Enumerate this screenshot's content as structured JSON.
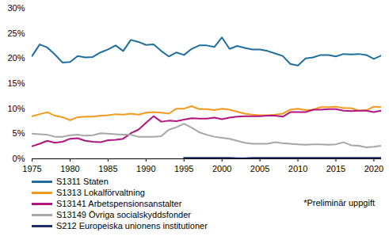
{
  "chart_data": {
    "type": "line",
    "x": [
      1975,
      1976,
      1977,
      1978,
      1979,
      1980,
      1981,
      1982,
      1983,
      1984,
      1985,
      1986,
      1987,
      1988,
      1989,
      1990,
      1991,
      1992,
      1993,
      1994,
      1995,
      1996,
      1997,
      1998,
      1999,
      2000,
      2001,
      2002,
      2003,
      2004,
      2005,
      2006,
      2007,
      2008,
      2009,
      2010,
      2011,
      2012,
      2013,
      2014,
      2015,
      2016,
      2017,
      2018,
      2019,
      2020,
      2021
    ],
    "series": [
      {
        "name": "S1311 Staten",
        "color": "#1f6e9e",
        "values": [
          20.5,
          22.8,
          22.2,
          20.8,
          19.2,
          19.3,
          20.5,
          20.2,
          20.3,
          21.2,
          21.8,
          22.6,
          21.5,
          23.7,
          23.3,
          22.7,
          22.8,
          21.5,
          20.4,
          21.2,
          20.7,
          21.9,
          22.6,
          22.6,
          22.3,
          24.2,
          21.9,
          22.5,
          22.1,
          21.8,
          21.8,
          21.5,
          21.0,
          20.5,
          18.9,
          18.6,
          20.0,
          20.2,
          20.7,
          20.7,
          20.4,
          20.9,
          20.8,
          20.9,
          20.7,
          19.9,
          20.6
        ]
      },
      {
        "name": "S1313 Lokalförvaltning",
        "color": "#f39a1e",
        "values": [
          8.5,
          8.9,
          9.3,
          8.6,
          8.3,
          7.7,
          8.3,
          8.4,
          8.4,
          8.6,
          8.7,
          8.9,
          8.8,
          9.0,
          8.8,
          9.2,
          9.3,
          9.2,
          9.0,
          10.0,
          10.0,
          10.5,
          9.9,
          9.9,
          9.7,
          10.0,
          9.8,
          9.4,
          9.0,
          8.8,
          8.7,
          8.7,
          8.8,
          9.0,
          9.8,
          10.0,
          9.7,
          9.8,
          10.3,
          10.3,
          10.4,
          10.1,
          10.1,
          9.6,
          9.7,
          10.4,
          10.3
        ]
      },
      {
        "name": "S13141 Arbetspensionsanstalter",
        "color": "#b0157f",
        "values": [
          2.5,
          3.0,
          3.6,
          3.2,
          3.4,
          4.0,
          4.1,
          3.6,
          3.4,
          3.3,
          3.7,
          3.8,
          4.0,
          5.1,
          5.8,
          7.2,
          8.5,
          7.4,
          7.6,
          7.5,
          7.8,
          8.1,
          8.0,
          8.0,
          8.2,
          7.9,
          8.2,
          8.4,
          8.5,
          8.5,
          8.5,
          8.6,
          8.6,
          8.4,
          9.3,
          9.3,
          9.3,
          9.8,
          9.8,
          9.9,
          9.9,
          9.6,
          9.5,
          9.6,
          9.6,
          9.3,
          9.6
        ]
      },
      {
        "name": "S13149 Övriga socialskyddsfonder",
        "color": "#a6a6a6",
        "values": [
          5.0,
          4.9,
          4.8,
          4.4,
          4.4,
          4.7,
          4.8,
          4.6,
          4.7,
          5.1,
          5.0,
          4.9,
          4.8,
          4.8,
          4.4,
          4.4,
          4.4,
          4.5,
          5.8,
          6.3,
          7.0,
          6.2,
          5.3,
          4.8,
          4.4,
          4.2,
          4.0,
          3.6,
          3.2,
          3.0,
          3.0,
          3.0,
          3.3,
          3.1,
          3.0,
          2.9,
          2.8,
          2.9,
          2.9,
          2.8,
          2.9,
          3.3,
          2.7,
          2.6,
          2.3,
          2.4,
          2.6
        ]
      },
      {
        "name": "S212 Europeiska unionens institutioner",
        "color": "#1f2d6b",
        "values": [
          null,
          null,
          null,
          null,
          null,
          null,
          null,
          null,
          null,
          null,
          null,
          null,
          null,
          null,
          null,
          null,
          null,
          null,
          null,
          null,
          0.2,
          0.2,
          0.2,
          0.2,
          0.2,
          0.2,
          0.2,
          0.1,
          0.1,
          0.2,
          0.2,
          0.2,
          0.2,
          0.2,
          0.2,
          0.2,
          0.2,
          0.2,
          0.2,
          0.2,
          0.2,
          0.2,
          0.2,
          0.2,
          0.2,
          0.2,
          0.2
        ]
      }
    ],
    "xlim": [
      1975,
      2021
    ],
    "xticks": [
      1975,
      1980,
      1985,
      1990,
      1995,
      2000,
      2005,
      2010,
      2015,
      2020
    ],
    "ylim": [
      0,
      30
    ],
    "yticks": [
      {
        "value": 0,
        "label": "0%"
      },
      {
        "value": 5,
        "label": "5%"
      },
      {
        "value": 10,
        "label": "10%"
      },
      {
        "value": 15,
        "label": "15%"
      },
      {
        "value": 20,
        "label": "20%"
      },
      {
        "value": 25,
        "label": "25%"
      },
      {
        "value": 30,
        "label": "30%"
      }
    ],
    "annotations": [
      "*Preliminär uppgift"
    ],
    "grid": false,
    "legend": "bottom"
  }
}
